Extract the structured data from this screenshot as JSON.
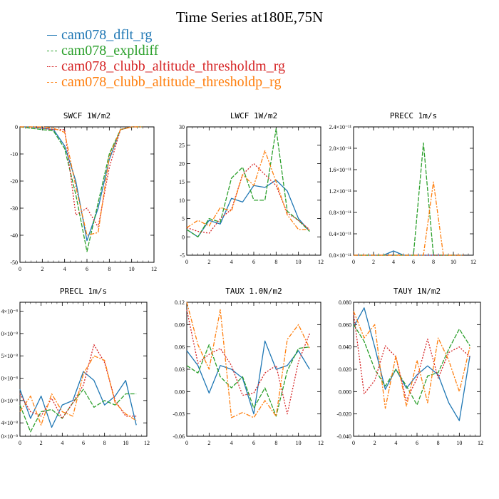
{
  "title": "Time Series at180E,75N",
  "legend": [
    {
      "name": "cam078_dflt_rg",
      "color": "#1f77b4",
      "dash": ""
    },
    {
      "name": "cam078_expldiff",
      "color": "#2ca02c",
      "dash": "6,2"
    },
    {
      "name": "cam078_clubb_altitude_thresholdm_rg",
      "color": "#d62728",
      "dash": "2,2"
    },
    {
      "name": "cam078_clubb_altitude_thresholdp_rg",
      "color": "#ff7f0e",
      "dash": "6,2,2,2"
    }
  ],
  "chart_data": [
    {
      "type": "line",
      "title": "SWCF   1W/m2",
      "xlim": [
        0,
        12
      ],
      "ylim": [
        -50,
        0
      ],
      "xticks": [
        "0",
        "2",
        "4",
        "6",
        "8",
        "10",
        "12"
      ],
      "yticks": [
        {
          "v": 0,
          "l": "0"
        },
        {
          "v": -10,
          "l": "-10"
        },
        {
          "v": -20,
          "l": "-20"
        },
        {
          "v": -30,
          "l": "-30"
        },
        {
          "v": -40,
          "l": "-40"
        },
        {
          "v": -50,
          "l": "-50"
        }
      ],
      "x": [
        0,
        1,
        2,
        3,
        4,
        5,
        6,
        7,
        8,
        9,
        10,
        11
      ],
      "series": [
        {
          "name": "cam078_dflt_rg",
          "values": [
            0,
            0,
            -0.5,
            -1,
            -7,
            -20,
            -42,
            -30,
            -12,
            -1,
            0,
            0
          ]
        },
        {
          "name": "cam078_expldiff",
          "values": [
            0,
            -0.5,
            -1,
            -1.5,
            -8,
            -25,
            -46,
            -28,
            -10,
            -1,
            0,
            0
          ]
        },
        {
          "name": "cam078_clubb_altitude_thresholdm_rg",
          "values": [
            0,
            0,
            -0.5,
            -1,
            -1,
            -32.5,
            -30,
            -37,
            -15,
            -1,
            0,
            0
          ]
        },
        {
          "name": "cam078_clubb_altitude_thresholdp_rg",
          "values": [
            0,
            0,
            0,
            -0.5,
            -2,
            -22,
            -40,
            -39,
            -11,
            -1,
            0,
            0
          ]
        }
      ]
    },
    {
      "type": "line",
      "title": "LWCF   1W/m2",
      "xlim": [
        0,
        12
      ],
      "ylim": [
        -5,
        30
      ],
      "xticks": [
        "0",
        "2",
        "4",
        "6",
        "8",
        "10",
        "12"
      ],
      "yticks": [
        {
          "v": 30,
          "l": "30"
        },
        {
          "v": 25,
          "l": "25"
        },
        {
          "v": 20,
          "l": "20"
        },
        {
          "v": 15,
          "l": "15"
        },
        {
          "v": 10,
          "l": "10"
        },
        {
          "v": 5,
          "l": "5"
        },
        {
          "v": 0,
          "l": "0"
        },
        {
          "v": -5,
          "l": "-5"
        }
      ],
      "x": [
        0,
        1,
        2,
        3,
        4,
        5,
        6,
        7,
        8,
        9,
        10,
        11
      ],
      "series": [
        {
          "name": "cam078_dflt_rg",
          "values": [
            2,
            0,
            4.5,
            3.5,
            10.5,
            9.5,
            14,
            13.5,
            15.5,
            12.5,
            5,
            1.5
          ]
        },
        {
          "name": "cam078_expldiff",
          "values": [
            2,
            0,
            5,
            4,
            16,
            19,
            10,
            10,
            29.5,
            7,
            4.5,
            1.5
          ]
        },
        {
          "name": "cam078_clubb_altitude_thresholdm_rg",
          "values": [
            2.5,
            1.5,
            1,
            5,
            7.5,
            17,
            20,
            17,
            14,
            6.5,
            4.5,
            2
          ]
        },
        {
          "name": "cam078_clubb_altitude_thresholdp_rg",
          "values": [
            2.5,
            4.5,
            3,
            8,
            7,
            17,
            14,
            23.5,
            15,
            6,
            2,
            2
          ]
        }
      ]
    },
    {
      "type": "line",
      "title": "PRECC   1m/s",
      "xlim": [
        0,
        12
      ],
      "ylim": [
        0,
        2.4e-11
      ],
      "xticks": [
        "0",
        "2",
        "4",
        "6",
        "8",
        "10",
        "12"
      ],
      "yticks": [
        {
          "v": 0,
          "l": "0.0×10⁻¹¹"
        },
        {
          "v": 4e-12,
          "l": "0.4×10⁻¹¹"
        },
        {
          "v": 8e-12,
          "l": "0.8×10⁻¹¹"
        },
        {
          "v": 1.2e-11,
          "l": "1.2×10⁻¹¹"
        },
        {
          "v": 1.6e-11,
          "l": "1.6×10⁻¹¹"
        },
        {
          "v": 2e-11,
          "l": "2.0×10⁻¹¹"
        },
        {
          "v": 2.4e-11,
          "l": "2.4×10⁻¹¹"
        }
      ],
      "x": [
        0,
        1,
        2,
        3,
        4,
        5,
        6,
        7,
        8,
        9,
        10,
        11
      ],
      "series": [
        {
          "name": "cam078_dflt_rg",
          "values": [
            0,
            0,
            0,
            0,
            8e-13,
            0,
            0,
            0,
            0,
            0,
            0,
            0
          ]
        },
        {
          "name": "cam078_expldiff",
          "values": [
            0,
            0,
            0,
            0,
            0,
            0,
            0,
            2.1e-11,
            0,
            0,
            0,
            0
          ]
        },
        {
          "name": "cam078_clubb_altitude_thresholdm_rg",
          "values": [
            0,
            0,
            0,
            0,
            0,
            0,
            0,
            0,
            0,
            0,
            0,
            0
          ]
        },
        {
          "name": "cam078_clubb_altitude_thresholdp_rg",
          "values": [
            0,
            0,
            0,
            0,
            0,
            0,
            0,
            0,
            1.37e-11,
            0,
            0,
            0
          ]
        }
      ]
    },
    {
      "type": "line",
      "title": "PRECL   1m/s",
      "xlim": [
        0,
        12
      ],
      "ylim": [
        -0.6,
        5.4
      ],
      "xticks": [
        "0",
        "2",
        "4",
        "6",
        "8",
        "10",
        "12"
      ],
      "yticks": [
        {
          "v": 5,
          "l": "4×10⁻⁸"
        },
        {
          "v": 4,
          "l": "0×10⁻⁸"
        },
        {
          "v": 3,
          "l": "5×10⁻⁸"
        },
        {
          "v": 2,
          "l": "0×10⁻⁸"
        },
        {
          "v": 1,
          "l": "0×10⁻⁸"
        },
        {
          "v": 0,
          "l": "4×10⁻⁸"
        },
        {
          "v": -0.6,
          "l": "0×10⁻⁸"
        }
      ],
      "x": [
        0,
        1,
        2,
        3,
        4,
        5,
        6,
        7,
        8,
        9,
        10,
        11
      ],
      "series": [
        {
          "name": "cam078_dflt_rg",
          "values": [
            1.5,
            0.2,
            1.2,
            -0.2,
            0.8,
            1,
            2.3,
            1.9,
            0.8,
            1.2,
            1.9,
            -0.1
          ]
        },
        {
          "name": "cam078_expldiff",
          "values": [
            0.8,
            -0.4,
            0.5,
            0.6,
            0.2,
            0.9,
            1.5,
            0.7,
            1,
            0.8,
            1.3,
            1.3
          ]
        },
        {
          "name": "cam078_clubb_altitude_thresholdm_rg",
          "values": [
            1.3,
            0.5,
            0.3,
            1.1,
            0.2,
            0.9,
            1.7,
            3.5,
            2.7,
            1,
            0.3,
            0.3
          ]
        },
        {
          "name": "cam078_clubb_altitude_thresholdp_rg",
          "values": [
            0.5,
            1.2,
            -0.1,
            1.3,
            0.5,
            0.3,
            2.2,
            3,
            2.8,
            0.9,
            0.4,
            0.1
          ]
        }
      ]
    },
    {
      "type": "line",
      "title": "TAUX   1.0N/m2",
      "xlim": [
        0,
        12
      ],
      "ylim": [
        -0.06,
        0.12
      ],
      "xticks": [
        "0",
        "2",
        "4",
        "6",
        "8",
        "10",
        "12"
      ],
      "yticks": [
        {
          "v": 0.12,
          "l": "0.12"
        },
        {
          "v": 0.09,
          "l": "0.09"
        },
        {
          "v": 0.06,
          "l": "0.06"
        },
        {
          "v": 0.03,
          "l": "0.03"
        },
        {
          "v": 0,
          "l": "0.00"
        },
        {
          "v": -0.03,
          "l": "-0.03"
        },
        {
          "v": -0.06,
          "l": "-0.06"
        }
      ],
      "x": [
        0,
        1,
        2,
        3,
        4,
        5,
        6,
        7,
        8,
        9,
        10,
        11
      ],
      "series": [
        {
          "name": "cam078_dflt_rg",
          "values": [
            0.055,
            0.035,
            -0.002,
            0.035,
            0.03,
            0.018,
            -0.03,
            0.068,
            0.03,
            0.035,
            0.055,
            0.03
          ]
        },
        {
          "name": "cam078_expldiff",
          "values": [
            0.035,
            0.025,
            0.063,
            0.02,
            0.005,
            0.02,
            -0.022,
            0.005,
            -0.033,
            0.028,
            0.058,
            0.06
          ]
        },
        {
          "name": "cam078_clubb_altitude_thresholdm_rg",
          "values": [
            0.11,
            0.038,
            0.05,
            0.058,
            0.035,
            -0.005,
            -0.002,
            0.025,
            0.035,
            -0.03,
            0.04,
            0.078
          ]
        },
        {
          "name": "cam078_clubb_altitude_thresholdp_rg",
          "values": [
            0.12,
            0.063,
            0.03,
            0.11,
            -0.035,
            -0.028,
            -0.035,
            -0.012,
            -0.033,
            0.07,
            0.09,
            0.058
          ]
        }
      ]
    },
    {
      "type": "line",
      "title": "TAUY   1N/m2",
      "xlim": [
        0,
        12
      ],
      "ylim": [
        -0.04,
        0.08
      ],
      "xticks": [
        "0",
        "2",
        "4",
        "6",
        "8",
        "10",
        "12"
      ],
      "yticks": [
        {
          "v": 0.08,
          "l": "0.080"
        },
        {
          "v": 0.06,
          "l": "0.060"
        },
        {
          "v": 0.04,
          "l": "0.040"
        },
        {
          "v": 0.02,
          "l": "0.020"
        },
        {
          "v": 0,
          "l": "0.000"
        },
        {
          "v": -0.02,
          "l": "-0.020"
        },
        {
          "v": -0.04,
          "l": "-0.040"
        }
      ],
      "x": [
        0,
        1,
        2,
        3,
        4,
        5,
        6,
        7,
        8,
        9,
        10,
        11
      ],
      "series": [
        {
          "name": "cam078_dflt_rg",
          "values": [
            0.058,
            0.075,
            0.04,
            0.002,
            0.02,
            0.003,
            0.015,
            0.023,
            0.015,
            -0.01,
            -0.026,
            0.032
          ]
        },
        {
          "name": "cam078_expldiff",
          "values": [
            0.06,
            0.045,
            0.02,
            0.005,
            0.02,
            0.005,
            -0.012,
            0.014,
            0.017,
            0.038,
            0.056,
            0.041
          ]
        },
        {
          "name": "cam078_clubb_altitude_thresholdm_rg",
          "values": [
            0.07,
            -0.002,
            0.01,
            0.041,
            0.031,
            -0.008,
            0.012,
            0.047,
            0.012,
            0.035,
            0.04,
            0.031
          ]
        },
        {
          "name": "cam078_clubb_altitude_thresholdp_rg",
          "values": [
            0.072,
            0.048,
            0.06,
            -0.015,
            0.032,
            -0.013,
            0.028,
            -0.01,
            0.048,
            0.028,
            0,
            0.04
          ]
        }
      ]
    }
  ]
}
